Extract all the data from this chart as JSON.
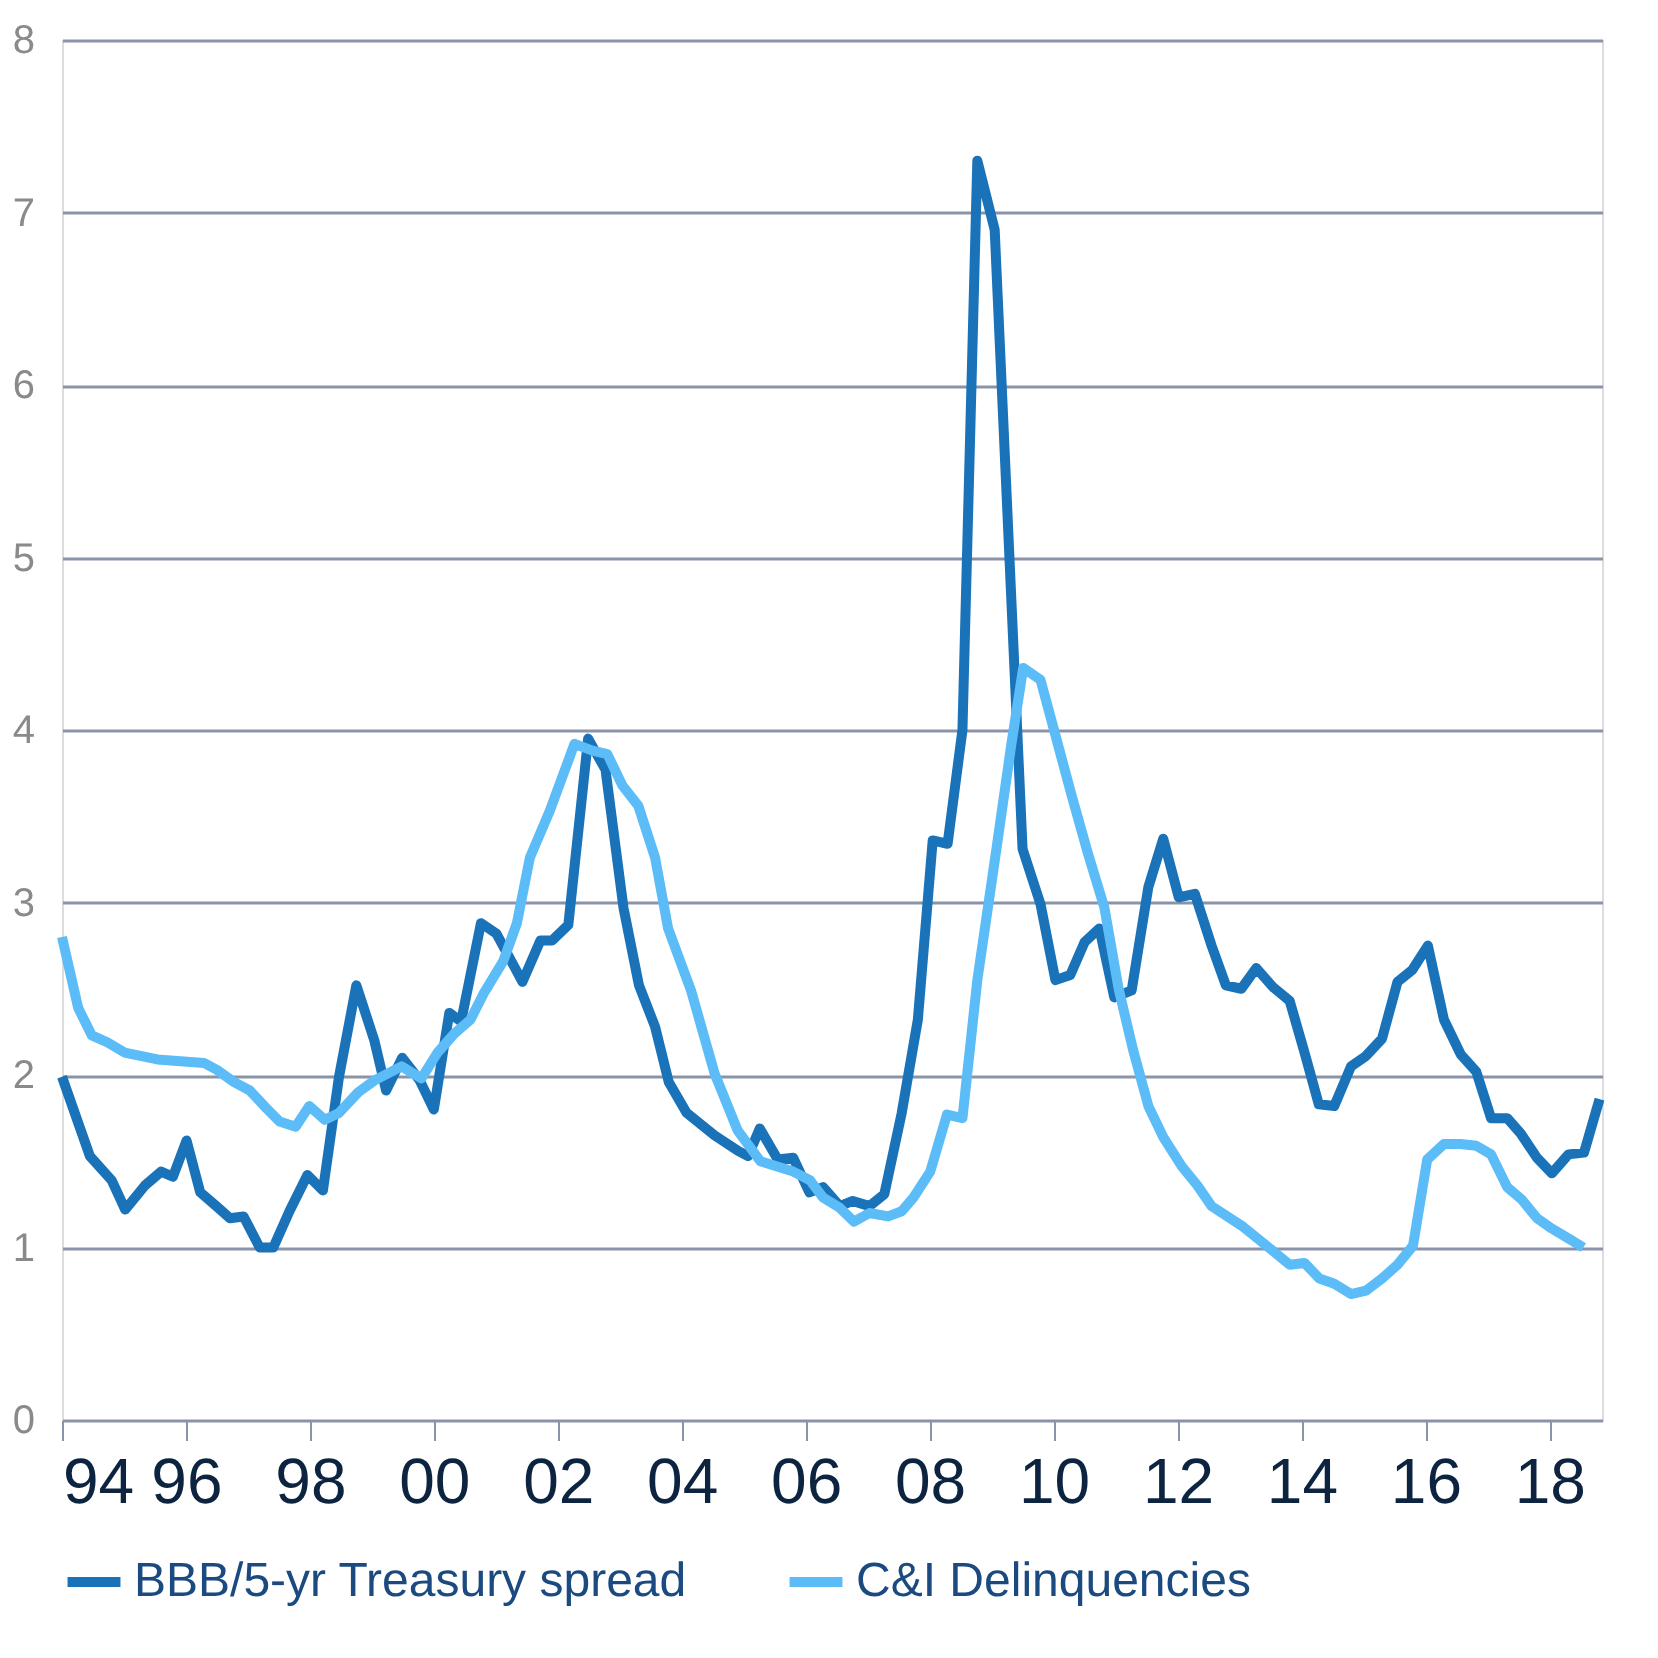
{
  "chart_data": {
    "type": "line",
    "series": [
      {
        "name": "BBB/5-yr Treasury spread",
        "color": "#1a72b8",
        "x": [
          1994.0,
          1994.45,
          1994.8,
          1995.02,
          1995.34,
          1995.6,
          1995.79,
          1996.01,
          1996.23,
          1996.49,
          1996.71,
          1996.93,
          1997.19,
          1997.41,
          1997.67,
          1997.96,
          1998.21,
          1998.47,
          1998.75,
          1999.04,
          1999.23,
          1999.49,
          1999.77,
          2000.0,
          2000.25,
          2000.44,
          2000.76,
          2001.01,
          2001.43,
          2001.72,
          2001.91,
          2002.17,
          2002.49,
          2002.77,
          2003.06,
          2003.31,
          2003.57,
          2003.79,
          2004.08,
          2004.53,
          2004.91,
          2005.07,
          2005.26,
          2005.55,
          2005.8,
          2006.06,
          2006.28,
          2006.55,
          2006.76,
          2007.03,
          2007.27,
          2007.55,
          2007.81,
          2008.05,
          2008.29,
          2008.53,
          2008.77,
          2009.05,
          2009.5,
          2009.79,
          2010.03,
          2010.27,
          2010.5,
          2010.74,
          2010.98,
          2011.26,
          2011.53,
          2011.77,
          2012.02,
          2012.28,
          2012.55,
          2012.78,
          2013.03,
          2013.27,
          2013.54,
          2013.81,
          2014.05,
          2014.28,
          2014.53,
          2014.8,
          2015.04,
          2015.3,
          2015.55,
          2015.79,
          2016.04,
          2016.3,
          2016.57,
          2016.82,
          2017.06,
          2017.32,
          2017.54,
          2017.8,
          2018.04,
          2018.31,
          2018.56,
          2018.81
        ],
        "values": [
          1.99,
          1.53,
          1.39,
          1.22,
          1.36,
          1.44,
          1.41,
          1.62,
          1.32,
          1.24,
          1.17,
          1.18,
          1.0,
          1.0,
          1.21,
          1.42,
          1.33,
          1.99,
          2.52,
          2.2,
          1.91,
          2.1,
          1.97,
          1.8,
          2.36,
          2.31,
          2.88,
          2.82,
          2.54,
          2.78,
          2.78,
          2.87,
          3.95,
          3.77,
          2.97,
          2.52,
          2.28,
          1.96,
          1.78,
          1.65,
          1.56,
          1.53,
          1.69,
          1.51,
          1.52,
          1.32,
          1.35,
          1.24,
          1.27,
          1.24,
          1.31,
          1.78,
          2.32,
          3.36,
          3.34,
          4.0,
          7.3,
          6.9,
          3.31,
          2.99,
          2.55,
          2.58,
          2.77,
          2.85,
          2.45,
          2.49,
          3.09,
          3.37,
          3.03,
          3.05,
          2.75,
          2.52,
          2.5,
          2.62,
          2.51,
          2.43,
          2.13,
          1.83,
          1.82,
          2.05,
          2.11,
          2.21,
          2.54,
          2.61,
          2.75,
          2.32,
          2.12,
          2.02,
          1.75,
          1.75,
          1.66,
          1.52,
          1.43,
          1.54,
          1.55,
          1.86
        ]
      },
      {
        "name": "C&I Delinquencies",
        "color": "#5bbcf8",
        "x": [
          1994.0,
          1994.26,
          1994.48,
          1994.73,
          1995.01,
          1995.54,
          1996.29,
          1996.5,
          1996.77,
          1997.03,
          1997.29,
          1997.51,
          1997.77,
          1997.99,
          1998.24,
          1998.47,
          1998.78,
          1999.05,
          1999.48,
          1999.8,
          2000.06,
          2000.33,
          2000.59,
          2000.8,
          2001.12,
          2001.34,
          2001.55,
          2001.87,
          2002.27,
          2002.56,
          2002.8,
          2003.04,
          2003.3,
          2003.57,
          2003.78,
          2004.15,
          2004.53,
          2004.9,
          2005.27,
          2005.8,
          2006.07,
          2006.28,
          2006.55,
          2006.78,
          2007.03,
          2007.33,
          2007.55,
          2007.74,
          2008.01,
          2008.28,
          2008.53,
          2008.77,
          2009.07,
          2009.32,
          2009.51,
          2009.79,
          2010.03,
          2010.3,
          2010.55,
          2010.82,
          2011.05,
          2011.28,
          2011.53,
          2011.77,
          2012.07,
          2012.32,
          2012.55,
          2013.06,
          2013.54,
          2013.81,
          2014.05,
          2014.29,
          2014.53,
          2014.8,
          2015.04,
          2015.3,
          2015.55,
          2015.8,
          2016.03,
          2016.3,
          2016.57,
          2016.82,
          2017.06,
          2017.32,
          2017.55,
          2017.8,
          2018.04,
          2018.32,
          2018.55
        ],
        "values": [
          2.8,
          2.39,
          2.23,
          2.19,
          2.13,
          2.09,
          2.07,
          2.03,
          1.96,
          1.91,
          1.81,
          1.73,
          1.7,
          1.82,
          1.74,
          1.78,
          1.9,
          1.97,
          2.05,
          1.98,
          2.13,
          2.24,
          2.32,
          2.47,
          2.66,
          2.88,
          3.26,
          3.53,
          3.92,
          3.88,
          3.86,
          3.68,
          3.56,
          3.26,
          2.85,
          2.49,
          2.01,
          1.68,
          1.5,
          1.44,
          1.39,
          1.29,
          1.23,
          1.15,
          1.2,
          1.18,
          1.21,
          1.29,
          1.44,
          1.77,
          1.75,
          2.55,
          3.29,
          3.92,
          4.36,
          4.29,
          3.97,
          3.61,
          3.29,
          2.97,
          2.5,
          2.15,
          1.82,
          1.64,
          1.47,
          1.36,
          1.24,
          1.12,
          0.98,
          0.9,
          0.91,
          0.82,
          0.79,
          0.73,
          0.75,
          0.82,
          0.9,
          1.01,
          1.51,
          1.6,
          1.6,
          1.59,
          1.54,
          1.35,
          1.28,
          1.17,
          1.11,
          1.05,
          1.0
        ]
      }
    ],
    "xlim": [
      1994,
      2018.85
    ],
    "xticks": [
      {
        "value": 1994,
        "label": "94"
      },
      {
        "value": 1996,
        "label": "96"
      },
      {
        "value": 1998,
        "label": "98"
      },
      {
        "value": 2000,
        "label": "00"
      },
      {
        "value": 2002,
        "label": "02"
      },
      {
        "value": 2004,
        "label": "04"
      },
      {
        "value": 2006,
        "label": "06"
      },
      {
        "value": 2008,
        "label": "08"
      },
      {
        "value": 2010,
        "label": "10"
      },
      {
        "value": 2012,
        "label": "12"
      },
      {
        "value": 2014,
        "label": "14"
      },
      {
        "value": 2016,
        "label": "16"
      },
      {
        "value": 2018,
        "label": "18"
      }
    ],
    "ylim": [
      0,
      8
    ],
    "yticks": [
      0,
      1,
      2,
      3,
      4,
      5,
      6,
      7,
      8
    ],
    "grid": "y",
    "legend": "bottom",
    "line_style": "solid",
    "marker": "none"
  }
}
